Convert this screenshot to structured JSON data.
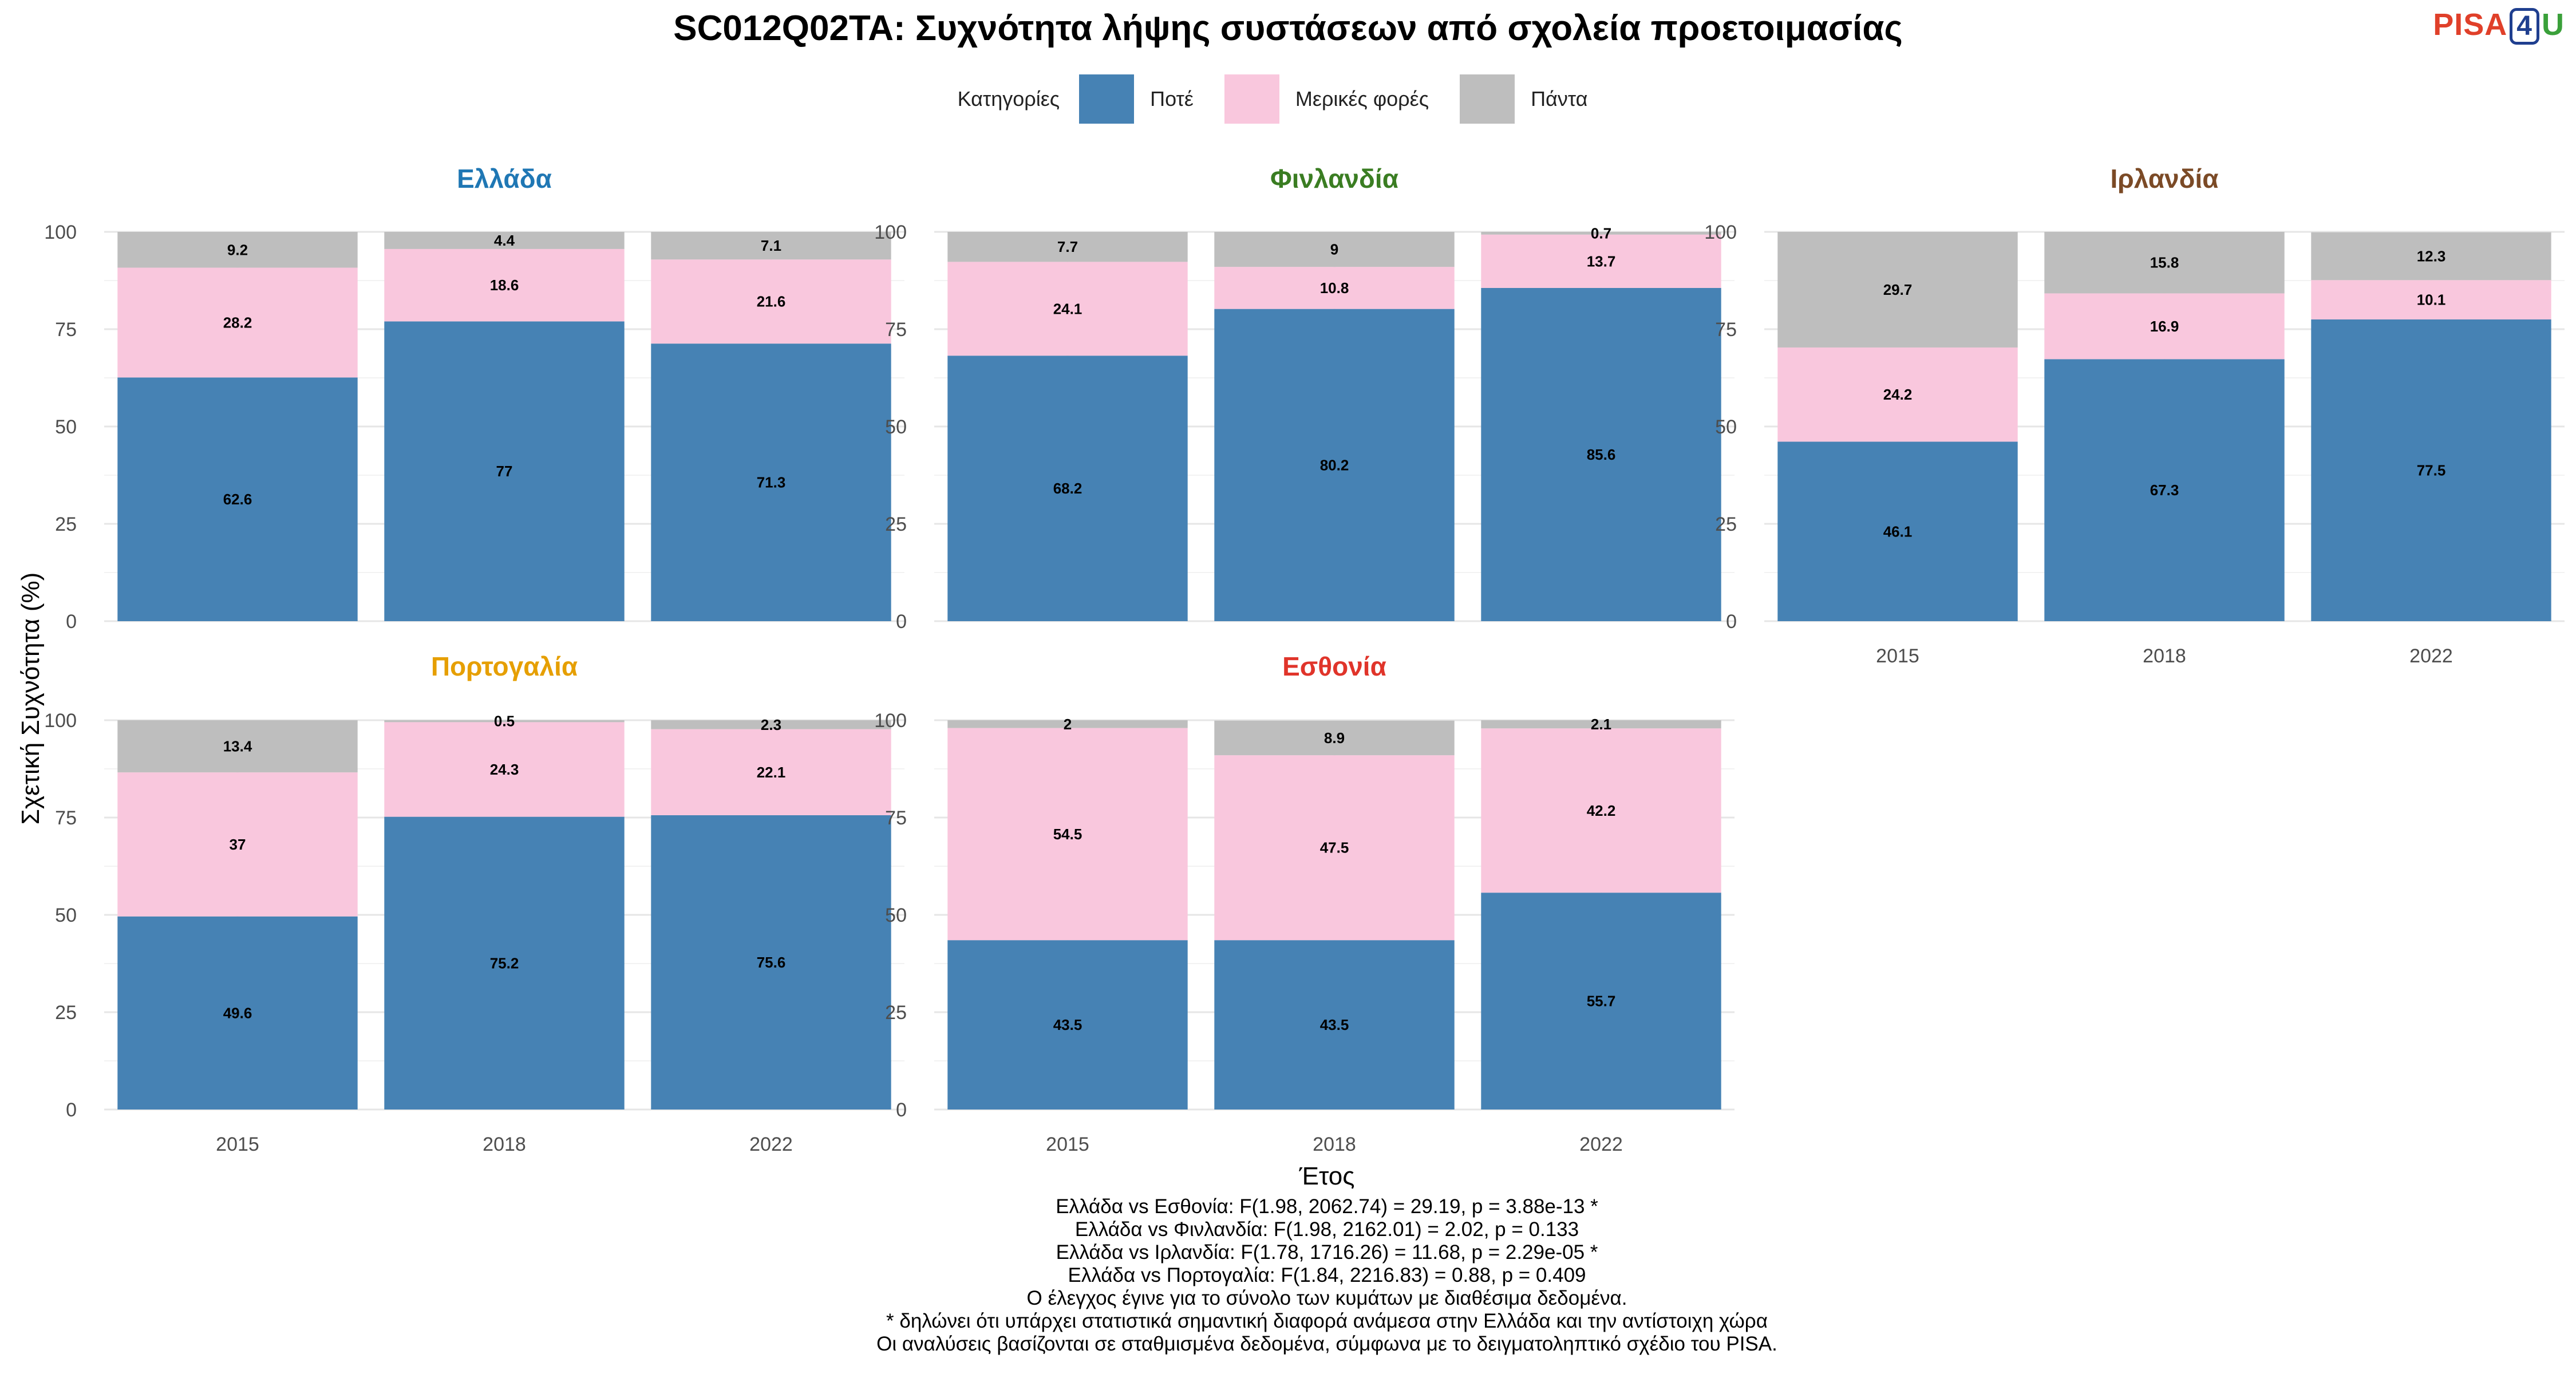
{
  "title": "SC012Q02TA: Συχνότητα λήψης συστάσεων από σχολεία προετοιμασίας",
  "logo": {
    "p": "PISA",
    "four": "4",
    "u": "U"
  },
  "legend": {
    "title": "Κατηγορίες",
    "items": [
      {
        "label": "Ποτέ",
        "color": "#4682B4"
      },
      {
        "label": "Μερικές φορές",
        "color": "#F9C7DD"
      },
      {
        "label": "Πάντα",
        "color": "#BEBEBE"
      }
    ]
  },
  "chart_data": {
    "type": "bar",
    "stacked": true,
    "xlabel": "Έτος",
    "ylabel": "Σχετική Συχνότητα (%)",
    "ylim": [
      0,
      100
    ],
    "yticks": [
      "0",
      "25",
      "50",
      "75",
      "100"
    ],
    "categories": [
      "2015",
      "2018",
      "2022"
    ],
    "series_names": [
      "Ποτέ",
      "Μερικές φορές",
      "Πάντα"
    ],
    "series_colors": [
      "#4682B4",
      "#F9C7DD",
      "#BEBEBE"
    ],
    "panels": [
      {
        "name": "Ελλάδα",
        "color": "#1f77b4",
        "values": [
          [
            62.6,
            28.2,
            9.2
          ],
          [
            77,
            18.6,
            4.4
          ],
          [
            71.3,
            21.6,
            7.1
          ]
        ],
        "labels": [
          [
            "62.6",
            "28.2",
            "9.2"
          ],
          [
            "77",
            "18.6",
            "4.4"
          ],
          [
            "71.3",
            "21.6",
            "7.1"
          ]
        ]
      },
      {
        "name": "Φινλανδία",
        "color": "#3a7d22",
        "values": [
          [
            68.2,
            24.1,
            7.7
          ],
          [
            80.2,
            10.8,
            9
          ],
          [
            85.6,
            13.7,
            0.7
          ]
        ],
        "labels": [
          [
            "68.2",
            "24.1",
            "7.7"
          ],
          [
            "80.2",
            "10.8",
            "9"
          ],
          [
            "85.6",
            "13.7",
            "0.7"
          ]
        ]
      },
      {
        "name": "Ιρλανδία",
        "color": "#7b4a26",
        "values": [
          [
            46.1,
            24.2,
            29.7
          ],
          [
            67.3,
            16.9,
            15.8
          ],
          [
            77.5,
            10.1,
            12.3
          ]
        ],
        "labels": [
          [
            "46.1",
            "24.2",
            "29.7"
          ],
          [
            "67.3",
            "16.9",
            "15.8"
          ],
          [
            "77.5",
            "10.1",
            "12.3"
          ]
        ]
      },
      {
        "name": "Πορτογαλία",
        "color": "#e69f00",
        "values": [
          [
            49.6,
            37,
            13.4
          ],
          [
            75.2,
            24.3,
            0.5
          ],
          [
            75.6,
            22.1,
            2.3
          ]
        ],
        "labels": [
          [
            "49.6",
            "37",
            "13.4"
          ],
          [
            "75.2",
            "24.3",
            "0.5"
          ],
          [
            "75.6",
            "22.1",
            "2.3"
          ]
        ]
      },
      {
        "name": "Εσθονία",
        "color": "#e0342a",
        "values": [
          [
            43.5,
            54.5,
            2
          ],
          [
            43.5,
            47.5,
            8.9
          ],
          [
            55.7,
            42.2,
            2.1
          ]
        ],
        "labels": [
          [
            "43.5",
            "54.5",
            "2"
          ],
          [
            "43.5",
            "47.5",
            "8.9"
          ],
          [
            "55.7",
            "42.2",
            "2.1"
          ]
        ]
      }
    ],
    "annotations": [
      "Ελλάδα vs Εσθονία: F(1.98, 2062.74) = 29.19, p = 3.88e-13 *",
      "Ελλάδα vs Φινλανδία: F(1.98, 2162.01) = 2.02, p = 0.133",
      "Ελλάδα vs Ιρλανδία: F(1.78, 1716.26) = 11.68, p = 2.29e-05 *",
      "Ελλάδα vs Πορτογαλία: F(1.84, 2216.83) = 0.88, p = 0.409",
      "Ο έλεγχος έγινε για το σύνολο των κυμάτων με διαθέσιμα δεδομένα.",
      "* δηλώνει ότι υπάρχει στατιστικά σημαντική διαφορά ανάμεσα στην Ελλάδα και την αντίστοιχη χώρα",
      "Οι αναλύσεις βασίζονται σε σταθμισμένα δεδομένα, σύμφωνα με το δειγματοληπτικό σχέδιο του PISA."
    ]
  }
}
